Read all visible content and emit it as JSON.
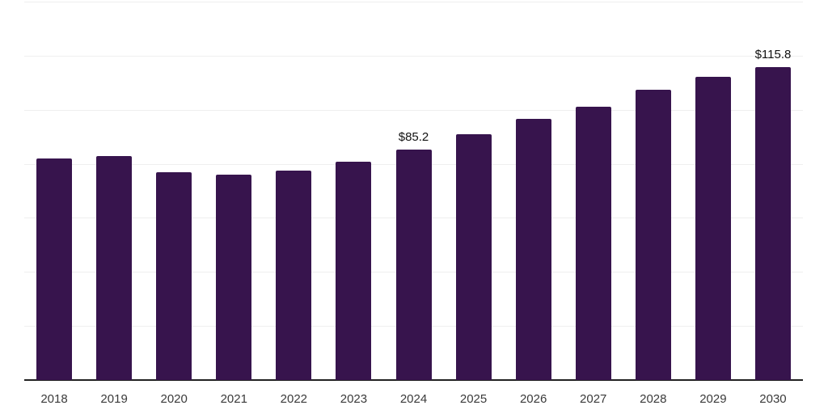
{
  "chart_data": {
    "type": "bar",
    "categories": [
      "2018",
      "2019",
      "2020",
      "2021",
      "2022",
      "2023",
      "2024",
      "2025",
      "2026",
      "2027",
      "2028",
      "2029",
      "2030"
    ],
    "values": [
      82.1,
      82.8,
      76.9,
      75.9,
      77.6,
      80.8,
      85.2,
      90.8,
      96.6,
      101.0,
      107.3,
      112.1,
      115.8
    ],
    "data_labels": {
      "2024": "$85.2",
      "2030": "$115.8"
    },
    "title": "",
    "xlabel": "",
    "ylabel": "",
    "ylim": [
      0,
      140
    ],
    "grid": {
      "visible": true,
      "y_interval": 20,
      "y_axis_labels_visible": false
    },
    "legend": "none",
    "colors": {
      "bar": "#37144d",
      "gridline": "#efefef",
      "axis_line": "#222222",
      "tick_text": "#3a3a3a",
      "data_label_text": "#111111"
    }
  }
}
